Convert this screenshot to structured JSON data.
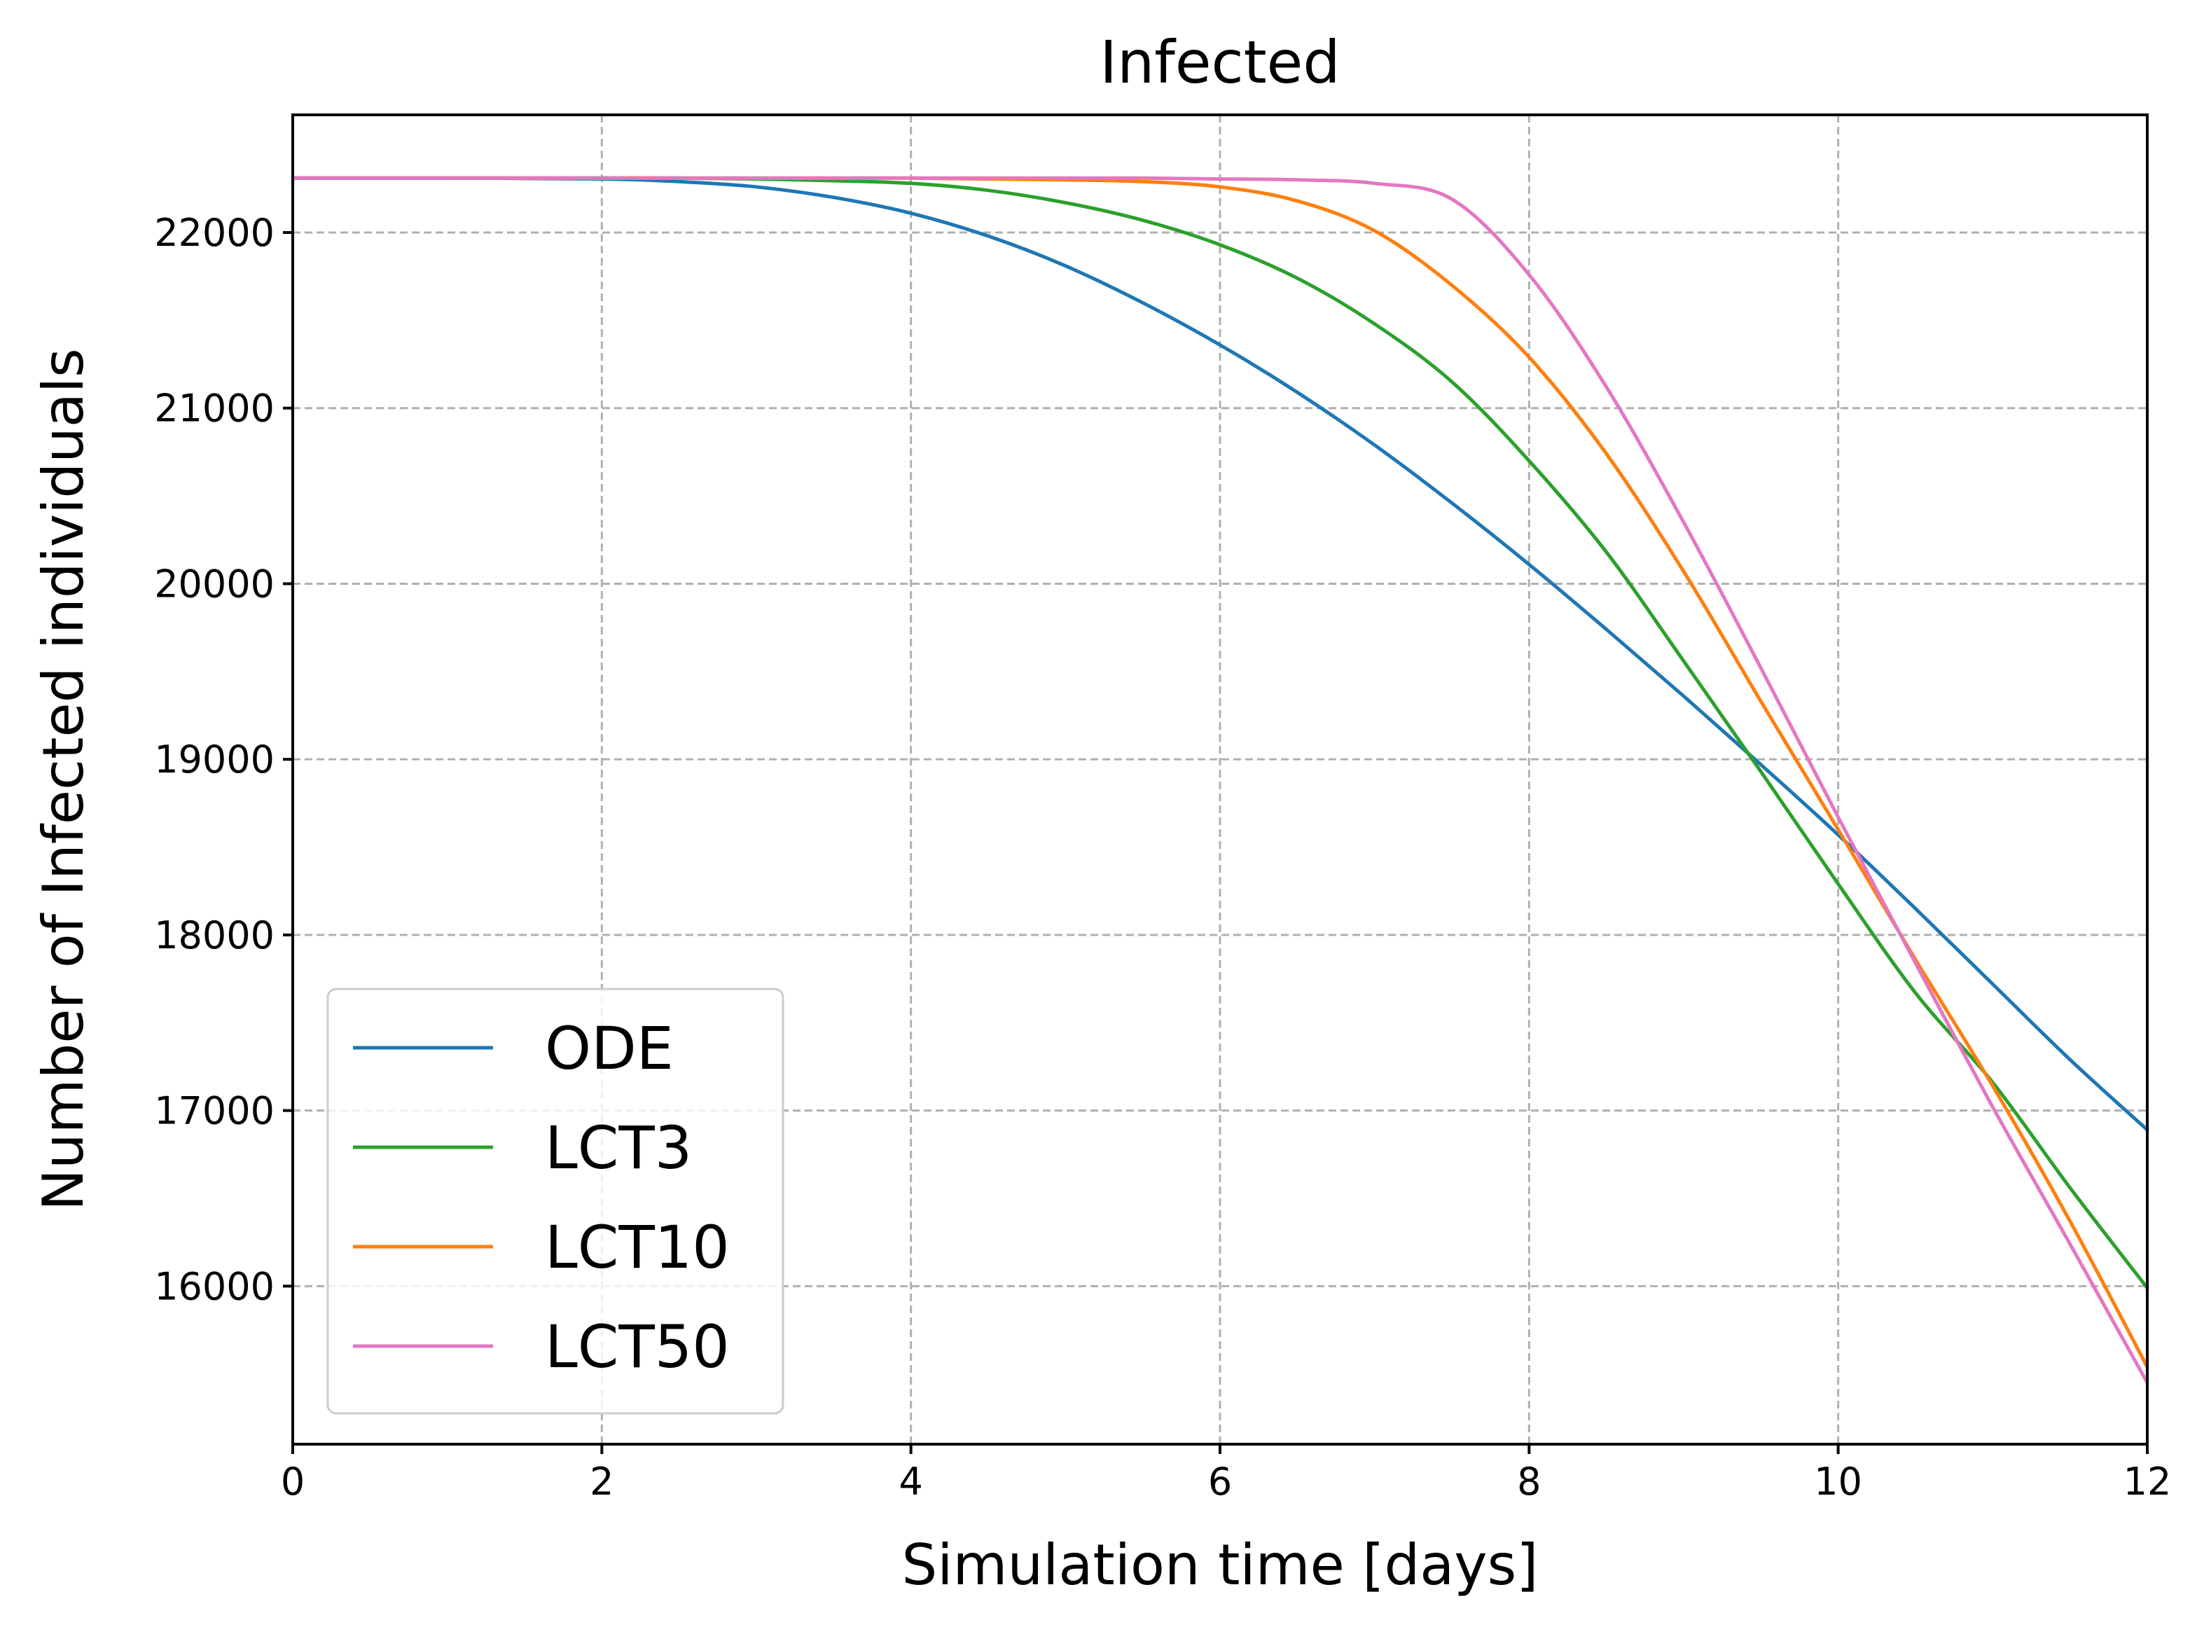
{
  "chart_data": {
    "type": "line",
    "title": "Infected",
    "xlabel": "Simulation time [days]",
    "ylabel": "Number of Infected individuals",
    "xlim": [
      0,
      12
    ],
    "ylim": [
      15100,
      22670
    ],
    "grid": true,
    "legend_position": "bottom-left",
    "xticks": [
      0,
      2,
      4,
      6,
      8,
      10,
      12
    ],
    "yticks": [
      16000,
      17000,
      18000,
      19000,
      20000,
      21000,
      22000
    ],
    "x": [
      0,
      1,
      2,
      2.5,
      3,
      3.5,
      4,
      4.5,
      5,
      5.5,
      6,
      6.5,
      7,
      7.5,
      8,
      8.5,
      9,
      9.5,
      10,
      10.5,
      11,
      11.5,
      12
    ],
    "series": [
      {
        "name": "ODE",
        "color": "#1f77b4",
        "values": [
          22310,
          22310,
          22305,
          22290,
          22260,
          22200,
          22110,
          21980,
          21810,
          21600,
          21360,
          21090,
          20790,
          20460,
          20110,
          19740,
          19360,
          18970,
          18570,
          18150,
          17720,
          17290,
          16890
        ]
      },
      {
        "name": "LCT3",
        "color": "#2ca02c",
        "values": [
          22310,
          22310,
          22310,
          22310,
          22305,
          22295,
          22280,
          22240,
          22170,
          22070,
          21930,
          21740,
          21480,
          21150,
          20700,
          20180,
          19560,
          18930,
          18290,
          17670,
          17160,
          16560,
          15990
        ]
      },
      {
        "name": "LCT10",
        "color": "#ff7f0e",
        "values": [
          22310,
          22310,
          22310,
          22310,
          22310,
          22310,
          22310,
          22305,
          22300,
          22290,
          22260,
          22180,
          22010,
          21700,
          21290,
          20740,
          20070,
          19330,
          18600,
          17860,
          17140,
          16370,
          15540
        ]
      },
      {
        "name": "LCT50",
        "color": "#e377c2",
        "values": [
          22310,
          22310,
          22310,
          22310,
          22310,
          22310,
          22310,
          22310,
          22310,
          22310,
          22305,
          22300,
          22280,
          22190,
          21760,
          21120,
          20350,
          19520,
          18670,
          17840,
          17020,
          16240,
          15450
        ]
      }
    ]
  }
}
